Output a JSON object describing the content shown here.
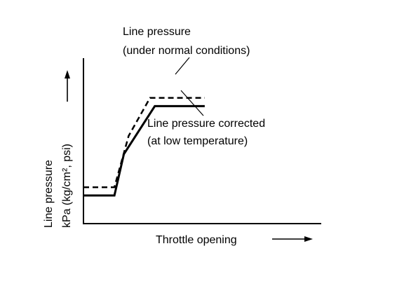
{
  "chart_data": {
    "type": "line",
    "xlabel": "Throttle opening",
    "ylabel_line1": "Line pressure",
    "ylabel_line2": "kPa (kg/cm², psi)",
    "xlim": [
      0,
      10
    ],
    "ylim": [
      0,
      10
    ],
    "grid": false,
    "series": [
      {
        "name": "Line pressure (under normal conditions)",
        "label_line1": "Line pressure",
        "label_line2": "(under normal conditions)",
        "style": "dashed",
        "x": [
          0,
          1.3,
          1.9,
          2.8,
          5.1
        ],
        "y": [
          2.2,
          2.2,
          5.3,
          7.6,
          7.6
        ]
      },
      {
        "name": "Line pressure corrected (at low temperature)",
        "label_line1": "Line pressure corrected",
        "label_line2": "(at low temperature)",
        "style": "solid",
        "x": [
          0,
          1.3,
          1.7,
          3.0,
          5.1
        ],
        "y": [
          1.7,
          1.7,
          4.2,
          7.1,
          7.1
        ]
      }
    ]
  }
}
